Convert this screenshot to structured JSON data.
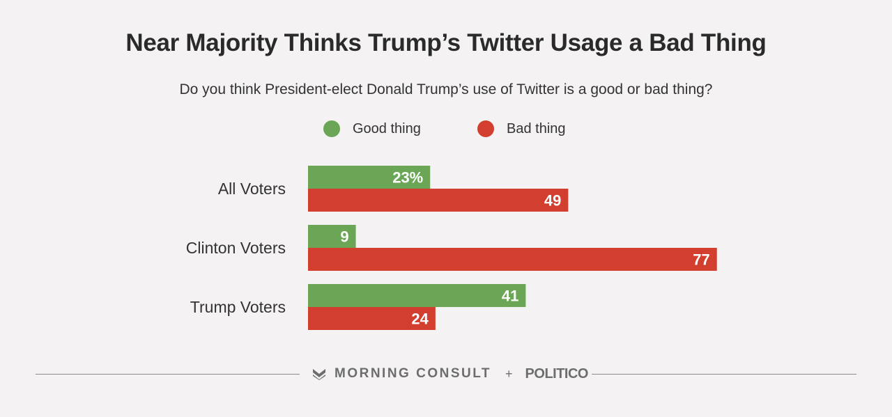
{
  "title": "Near Majority Thinks Trump’s Twitter Usage a Bad Thing",
  "subtitle": "Do you think President-elect Donald Trump’s use of Twitter is a good or bad thing?",
  "colors": {
    "good": "#6aa656",
    "bad": "#d23f2f",
    "background": "#f4f2f2"
  },
  "legend": [
    {
      "label": "Good thing",
      "color": "#6aa656"
    },
    {
      "label": "Bad thing",
      "color": "#d23f2f"
    }
  ],
  "footer": {
    "brand1": "MORNING CONSULT",
    "plus": "+",
    "brand2": "POLITICO",
    "logo_icon": "morning-consult-logo-icon"
  },
  "chart_data": {
    "type": "bar",
    "orientation": "horizontal",
    "categories": [
      "All Voters",
      "Clinton Voters",
      "Trump Voters"
    ],
    "series": [
      {
        "name": "Good thing",
        "values": [
          23,
          9,
          41
        ],
        "labels": [
          "23%",
          "9",
          "41"
        ]
      },
      {
        "name": "Bad thing",
        "values": [
          49,
          77,
          24
        ],
        "labels": [
          "49",
          "77",
          "24"
        ]
      }
    ],
    "xlim": [
      0,
      100
    ],
    "grid": false,
    "legend_position": "top-center"
  }
}
